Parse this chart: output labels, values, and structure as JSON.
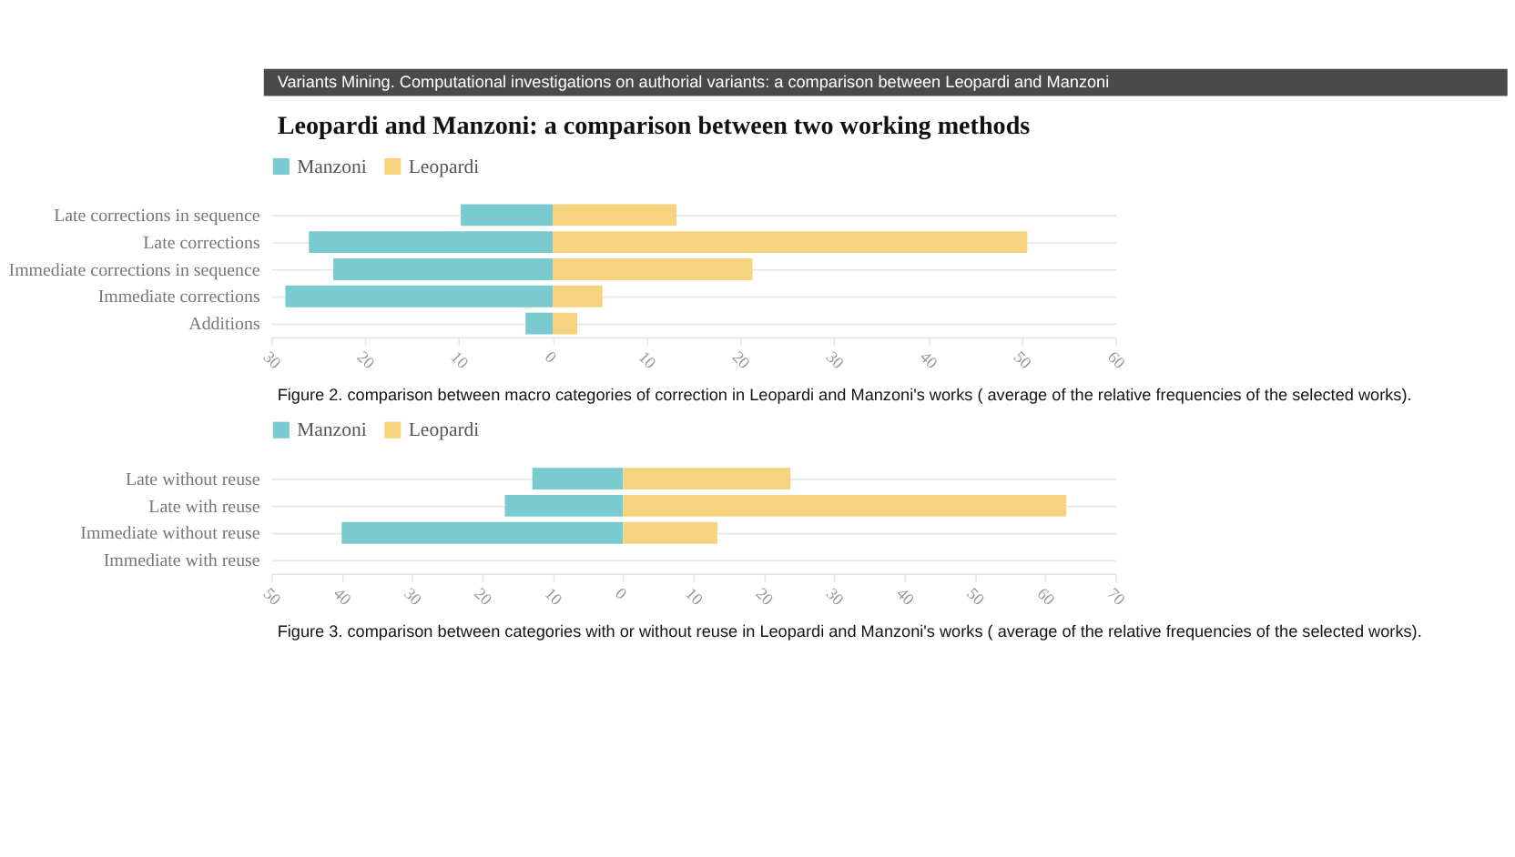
{
  "chart_data": [
    {
      "type": "bar",
      "orientation": "horizontal",
      "stacked": true,
      "title": "Leopardi and Manzoni: a comparison between two working methods",
      "categories": [
        "Late corrections in sequence",
        "Late corrections",
        "Immediate corrections in sequence",
        "Immediate corrections",
        "Additions"
      ],
      "series": [
        {
          "name": "Manzoni",
          "color": "#79cbd0",
          "values": [
            -9.8,
            -26,
            -23.4,
            -28.5,
            -2.9
          ]
        },
        {
          "name": "Leopardi",
          "color": "#f6d37f",
          "values": [
            13.2,
            50.6,
            21.3,
            5.3,
            2.6
          ]
        }
      ],
      "xlim": [
        -30,
        60
      ],
      "xticks": [
        {
          "value": -30,
          "label": "30"
        },
        {
          "value": -20,
          "label": "20"
        },
        {
          "value": -10,
          "label": "10"
        },
        0,
        10,
        20,
        30,
        40,
        50,
        60
      ],
      "grid": "y",
      "legend": "top left",
      "annotations": [
        "Variants Mining. Computational investigations on authorial variants: a comparison between Leopardi and Manzoni",
        "Figure 2. comparison between macro categories of correction in Leopardi and Manzoni's works ( average of the relative frequencies of the selected works)."
      ]
    },
    {
      "type": "bar",
      "orientation": "horizontal",
      "stacked": true,
      "categories": [
        "Late without reuse",
        "Late with reuse",
        "Immediate without reuse",
        "Immediate with reuse"
      ],
      "series": [
        {
          "name": "Manzoni",
          "color": "#79cbd0",
          "values": [
            -12.9,
            -16.8,
            -40,
            0
          ]
        },
        {
          "name": "Leopardi",
          "color": "#f6d37f",
          "values": [
            23.8,
            63,
            13.4,
            0
          ]
        }
      ],
      "xlim": [
        -50,
        70
      ],
      "xticks": [
        {
          "value": -50,
          "label": "50"
        },
        {
          "value": -40,
          "label": "40"
        },
        {
          "value": -30,
          "label": "30"
        },
        {
          "value": -20,
          "label": "20"
        },
        {
          "value": -10,
          "label": "10"
        },
        0,
        10,
        20,
        30,
        40,
        50,
        60,
        70
      ],
      "grid": "y",
      "legend": "top left",
      "annotations": [
        "Figure 3. comparison between categories with or without reuse in Leopardi and Manzoni's works ( average of the relative frequencies of the selected works)."
      ]
    }
  ]
}
